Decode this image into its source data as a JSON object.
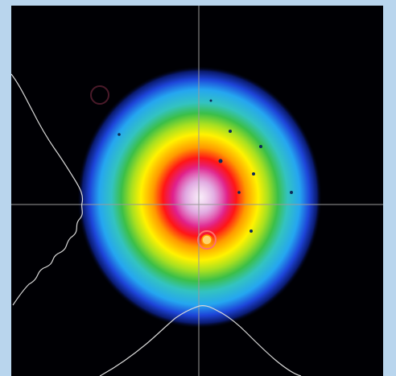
{
  "image": {
    "subject": "laser-beam-profile",
    "colormap": [
      "#000000",
      "#0a1a6e",
      "#1d44d8",
      "#25a6f0",
      "#33c3c0",
      "#3bbf48",
      "#a8e020",
      "#fff200",
      "#ff9a00",
      "#ff1616",
      "#e0208c",
      "#d68bd6",
      "#f2d6f2"
    ],
    "frame_color": "#b9d5ed",
    "background_color": "#000004",
    "crosshair_color": "#9a9a9a",
    "profile_trace_color": "#d8d8d8"
  }
}
